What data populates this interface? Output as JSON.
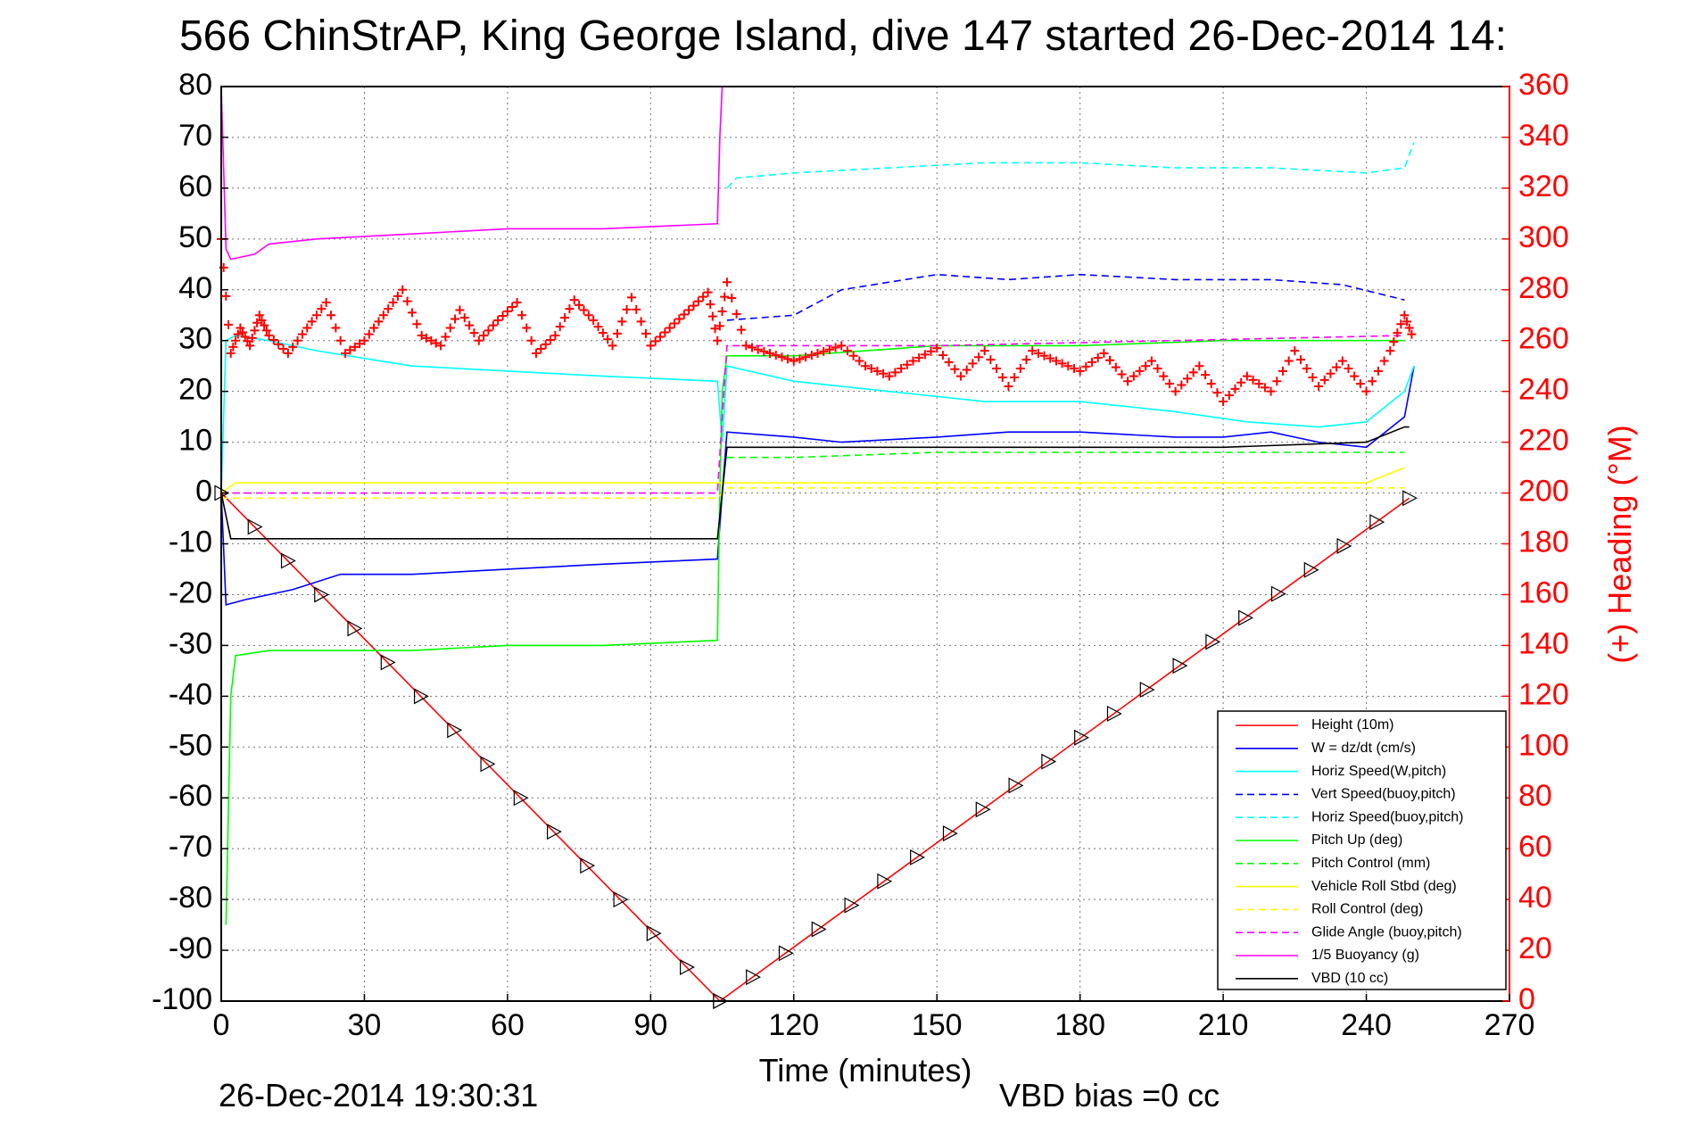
{
  "chart_data": {
    "type": "line",
    "title": "566 ChinStrAP, King George Island, dive 147 started 26-Dec-2014 14:",
    "xlabel": "Time (minutes)",
    "ylabel": "",
    "y2label": "(+) Heading (°M)",
    "footer_left": "26-Dec-2014 19:30:31",
    "footer_right": "VBD bias =0 cc",
    "xlim": [
      0,
      270
    ],
    "ylim": [
      -100,
      80
    ],
    "y2lim": [
      0,
      360
    ],
    "x_ticks": [
      "0",
      "30",
      "60",
      "90",
      "120",
      "150",
      "180",
      "210",
      "240",
      "270"
    ],
    "y_ticks": [
      "80",
      "70",
      "60",
      "50",
      "40",
      "30",
      "20",
      "10",
      "0",
      "-10",
      "-20",
      "-30",
      "-40",
      "-50",
      "-60",
      "-70",
      "-80",
      "-90",
      "-100"
    ],
    "y2_ticks": [
      "360",
      "340",
      "320",
      "300",
      "280",
      "260",
      "240",
      "220",
      "200",
      "180",
      "160",
      "140",
      "120",
      "100",
      "80",
      "60",
      "40",
      "20",
      "0"
    ],
    "grid": true,
    "legend_position": "bottom-right",
    "series": [
      {
        "name": "Height (10m)",
        "color": "#ff0000",
        "style": "solid",
        "marker": "triangle",
        "x": [
          0,
          104.5,
          249
        ],
        "y": [
          0,
          -100,
          -1
        ]
      },
      {
        "name": "W = dz/dt (cm/s)",
        "color": "#0000ff",
        "style": "solid",
        "x": [
          0,
          1,
          5,
          15,
          25,
          40,
          60,
          80,
          104,
          105,
          106,
          120,
          130,
          150,
          165,
          180,
          200,
          210,
          220,
          230,
          240,
          248,
          250
        ],
        "y": [
          0,
          -22,
          -21,
          -19,
          -16,
          -16,
          -15,
          -14,
          -13,
          0,
          12,
          11,
          10,
          11,
          12,
          12,
          11,
          11,
          12,
          10,
          9,
          15,
          25
        ]
      },
      {
        "name": "Horiz Speed(W,pitch)",
        "color": "#00ffff",
        "style": "solid",
        "x": [
          0,
          1,
          3,
          10,
          20,
          40,
          60,
          80,
          104,
          105,
          106,
          120,
          140,
          160,
          180,
          200,
          215,
          230,
          240,
          248,
          250
        ],
        "y": [
          0,
          30,
          31,
          30,
          28,
          25,
          24,
          23,
          22,
          10,
          25,
          22,
          20,
          18,
          18,
          16,
          14,
          13,
          14,
          20,
          25
        ]
      },
      {
        "name": "Vert Speed(buoy,pitch)",
        "color": "#0000ff",
        "style": "dashed",
        "x": [
          106,
          120,
          130,
          150,
          165,
          180,
          200,
          220,
          235,
          248
        ],
        "y": [
          34,
          35,
          40,
          43,
          42,
          43,
          42,
          42,
          41,
          38
        ]
      },
      {
        "name": "Horiz Speed(buoy,pitch)",
        "color": "#00ffff",
        "style": "dashed",
        "x": [
          106,
          108,
          120,
          140,
          160,
          180,
          200,
          220,
          240,
          248,
          250
        ],
        "y": [
          60,
          62,
          63,
          64,
          65,
          65,
          64,
          64,
          63,
          64,
          69
        ]
      },
      {
        "name": "Pitch Up (deg)",
        "color": "#00ff00",
        "style": "solid",
        "x": [
          1,
          2,
          3,
          10,
          20,
          40,
          60,
          80,
          104,
          104.5,
          105,
          106,
          120,
          150,
          180,
          210,
          240,
          248
        ],
        "y": [
          -85,
          -40,
          -32,
          -31,
          -31,
          -31,
          -30,
          -30,
          -29,
          0,
          20,
          27,
          27,
          29,
          29,
          30,
          30,
          30
        ]
      },
      {
        "name": "Pitch Control (mm)",
        "color": "#00ff00",
        "style": "dashed",
        "x": [
          106,
          120,
          150,
          180,
          210,
          248
        ],
        "y": [
          7,
          7,
          8,
          8,
          8,
          8
        ]
      },
      {
        "name": "Vehicle Roll Stbd (deg)",
        "color": "#ffff00",
        "style": "solid",
        "x": [
          0,
          3,
          10,
          40,
          80,
          104,
          106,
          120,
          160,
          200,
          240,
          248
        ],
        "y": [
          0,
          2,
          2,
          2,
          2,
          2,
          2,
          2,
          2,
          2,
          2,
          5
        ]
      },
      {
        "name": "Roll Control (deg)",
        "color": "#ffff00",
        "style": "dashed",
        "x": [
          0,
          104,
          106,
          248
        ],
        "y": [
          -1,
          -1,
          1,
          1
        ]
      },
      {
        "name": "Glide Angle (buoy,pitch)",
        "color": "#ff00ff",
        "style": "dashed",
        "x": [
          0,
          104,
          105,
          106,
          150,
          200,
          248
        ],
        "y": [
          0,
          0,
          15,
          29,
          29,
          30,
          31
        ]
      },
      {
        "name": "1/5 Buoyancy (g)",
        "color": "#ff00ff",
        "style": "solid",
        "x": [
          0,
          1,
          2,
          7,
          10,
          20,
          40,
          60,
          80,
          104,
          104.5,
          105
        ],
        "y": [
          80,
          48,
          46,
          47,
          49,
          50,
          51,
          52,
          52,
          53,
          70,
          80
        ]
      },
      {
        "name": "VBD (10 cc)",
        "color": "#000000",
        "style": "solid",
        "x": [
          0,
          2,
          104,
          105,
          106,
          125,
          210,
          240,
          248,
          249
        ],
        "y": [
          0,
          -9,
          -9,
          0,
          9,
          9,
          9,
          10,
          13,
          13
        ]
      }
    ],
    "heading_series": {
      "color": "#ff0000",
      "marker": "+",
      "axis": "right",
      "x": [
        0,
        2,
        4,
        6,
        8,
        10,
        14,
        18,
        22,
        26,
        30,
        34,
        38,
        42,
        46,
        50,
        54,
        58,
        62,
        66,
        70,
        74,
        78,
        82,
        86,
        90,
        94,
        98,
        102,
        104,
        106,
        110,
        115,
        120,
        125,
        130,
        135,
        140,
        145,
        150,
        155,
        160,
        165,
        170,
        175,
        180,
        185,
        190,
        195,
        200,
        205,
        210,
        215,
        220,
        225,
        230,
        235,
        240,
        245,
        248,
        250
      ],
      "y": [
        300,
        255,
        265,
        258,
        270,
        262,
        255,
        265,
        275,
        255,
        260,
        270,
        280,
        262,
        258,
        272,
        260,
        268,
        275,
        255,
        262,
        276,
        268,
        258,
        277,
        258,
        265,
        272,
        279,
        260,
        283,
        258,
        255,
        252,
        255,
        258,
        250,
        246,
        252,
        257,
        246,
        256,
        242,
        256,
        252,
        248,
        255,
        244,
        252,
        240,
        250,
        236,
        246,
        240,
        256,
        242,
        252,
        240,
        256,
        270,
        260
      ]
    }
  }
}
